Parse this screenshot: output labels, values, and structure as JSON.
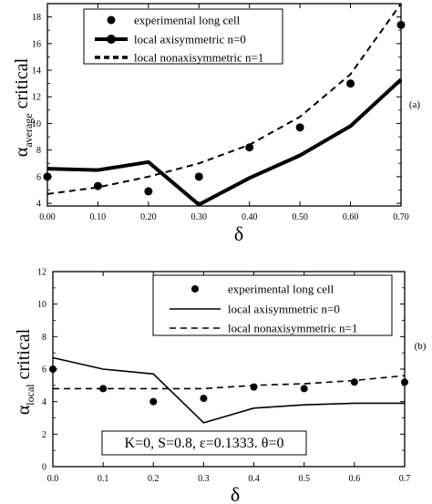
{
  "chart_data": [
    {
      "type": "line",
      "panel_label": "(a)",
      "xlabel": "δ",
      "ylabel_main": "α",
      "ylabel_sub": "average",
      "ylabel_tail": "critical",
      "xlim": [
        0,
        0.7
      ],
      "ylim": [
        3.8,
        19
      ],
      "x_ticks": [
        "0.00",
        "0.10",
        "0.20",
        "0.30",
        "0.40",
        "0.50",
        "0.60",
        "0.70"
      ],
      "y_ticks": [
        4,
        6,
        8,
        10,
        12,
        14,
        16,
        18
      ],
      "grid": false,
      "legend_position": "top-left",
      "series": [
        {
          "name": "experimental long cell",
          "style": "markers",
          "x": [
            0,
            0.1,
            0.2,
            0.3,
            0.4,
            0.5,
            0.6,
            0.7
          ],
          "y": [
            6.0,
            5.3,
            4.9,
            6.0,
            8.2,
            9.7,
            13.0,
            17.4
          ]
        },
        {
          "name": "local axisymmetric n=0",
          "style": "thick-solid",
          "x": [
            0,
            0.1,
            0.2,
            0.3,
            0.4,
            0.5,
            0.6,
            0.7
          ],
          "y": [
            6.6,
            6.5,
            7.1,
            3.9,
            5.9,
            7.6,
            9.8,
            13.3
          ]
        },
        {
          "name": "local nonaxisymmetric n=1",
          "style": "dashed",
          "x": [
            0,
            0.1,
            0.2,
            0.3,
            0.4,
            0.5,
            0.6,
            0.7
          ],
          "y": [
            4.7,
            5.2,
            6.0,
            7.0,
            8.4,
            10.5,
            13.7,
            19.0
          ]
        }
      ]
    },
    {
      "type": "line",
      "panel_label": "(b)",
      "xlabel": "δ",
      "ylabel_main": "α",
      "ylabel_sub": "local",
      "ylabel_tail": "critical",
      "xlim": [
        0,
        0.7
      ],
      "ylim": [
        0,
        12
      ],
      "x_ticks": [
        "0.0",
        "0.1",
        "0.2",
        "0.3",
        "0.4",
        "0.5",
        "0.6",
        "0.7"
      ],
      "y_ticks": [
        0,
        2,
        4,
        6,
        8,
        10,
        12
      ],
      "grid": false,
      "legend_position": "top-right",
      "annotation": "K=0, S=0.8, ε=0.1333. θ=0",
      "series": [
        {
          "name": "experimental long cell",
          "style": "markers",
          "x": [
            0,
            0.1,
            0.2,
            0.3,
            0.4,
            0.5,
            0.6,
            0.7
          ],
          "y": [
            6.0,
            4.8,
            4.0,
            4.2,
            4.9,
            4.8,
            5.2,
            5.2
          ]
        },
        {
          "name": "local axisymmetric n=0",
          "style": "solid",
          "x": [
            0,
            0.1,
            0.2,
            0.3,
            0.4,
            0.5,
            0.6,
            0.7
          ],
          "y": [
            6.7,
            6.0,
            5.7,
            2.7,
            3.6,
            3.8,
            3.9,
            3.9
          ]
        },
        {
          "name": "local nonaxisymmetric n=1",
          "style": "dashed",
          "x": [
            0,
            0.1,
            0.2,
            0.3,
            0.4,
            0.5,
            0.6,
            0.7
          ],
          "y": [
            4.8,
            4.8,
            4.8,
            4.8,
            5.0,
            5.1,
            5.3,
            5.6
          ]
        }
      ]
    }
  ]
}
